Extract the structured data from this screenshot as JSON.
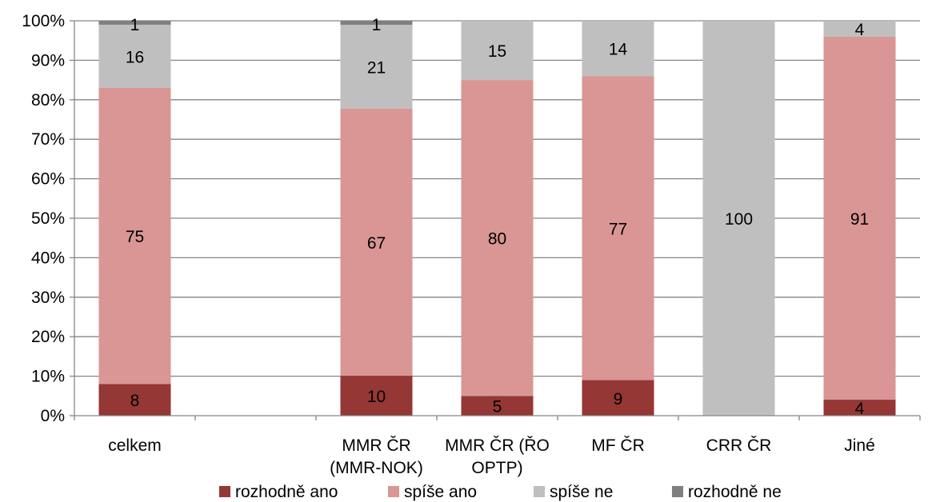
{
  "chart_data": {
    "type": "bar",
    "stacked": true,
    "percent_stacked": true,
    "title": "",
    "xlabel": "",
    "ylabel": "",
    "ylim": [
      0,
      100
    ],
    "yticks": [
      "0%",
      "10%",
      "20%",
      "30%",
      "40%",
      "50%",
      "60%",
      "70%",
      "80%",
      "90%",
      "100%"
    ],
    "grid": "horizontal",
    "legend_position": "bottom",
    "categories": [
      [
        "celkem"
      ],
      [
        ""
      ],
      [
        "MMR ČR",
        "(MMR-NOK)"
      ],
      [
        "MMR ČR (ŘO",
        "OPTP)"
      ],
      [
        "MF ČR"
      ],
      [
        "CRR ČR"
      ],
      [
        "Jiné"
      ]
    ],
    "series": [
      {
        "name": "rozhodně ano",
        "color": "#953735",
        "values": [
          8,
          null,
          10,
          5,
          9,
          0,
          4
        ],
        "labels": [
          "8",
          "",
          "10",
          "5",
          "9",
          "",
          "4"
        ]
      },
      {
        "name": "spíše ano",
        "color": "#d99694",
        "values": [
          75,
          null,
          67,
          80,
          77,
          0,
          91
        ],
        "labels": [
          "75",
          "",
          "67",
          "80",
          "77",
          "",
          "91"
        ]
      },
      {
        "name": "spíše ne",
        "color": "#bfbfbf",
        "values": [
          16,
          null,
          21,
          15,
          14,
          100,
          4
        ],
        "labels": [
          "16",
          "",
          "21",
          "15",
          "14",
          "100",
          "4"
        ]
      },
      {
        "name": "rozhodně ne",
        "color": "#7f7f7f",
        "values": [
          1,
          null,
          1,
          0,
          0,
          0,
          0
        ],
        "labels": [
          "1",
          "",
          "1",
          "",
          "",
          "",
          ""
        ]
      }
    ]
  }
}
